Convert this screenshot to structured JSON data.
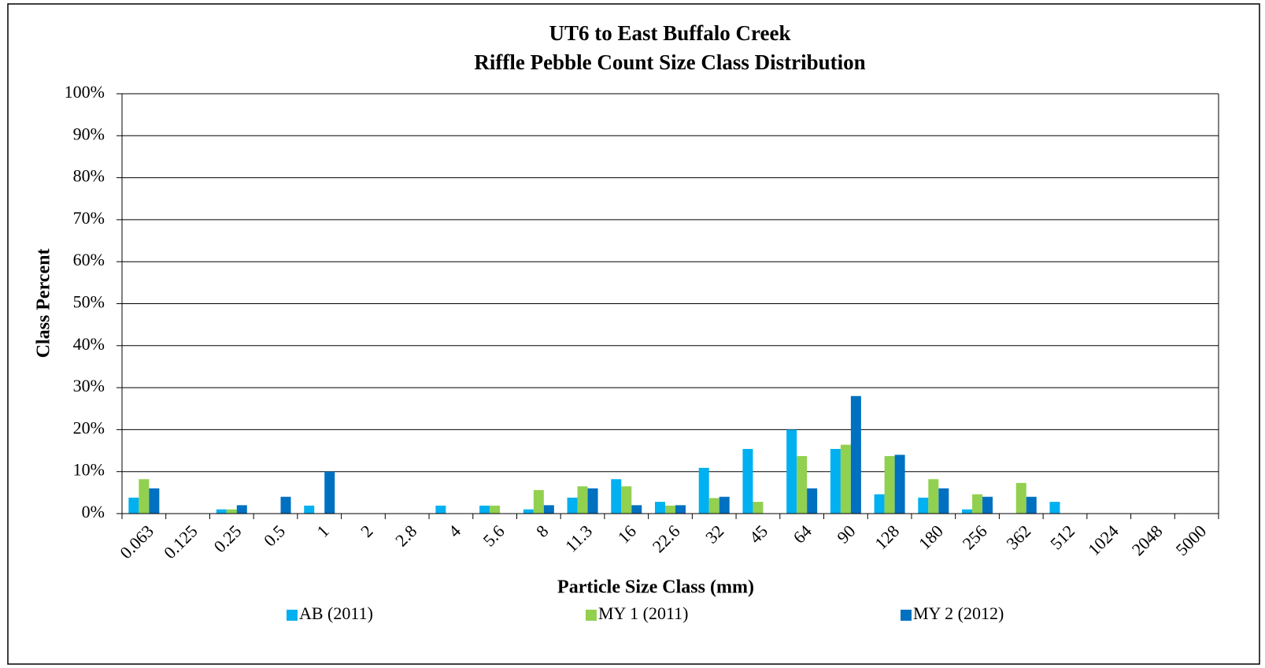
{
  "chart_data": {
    "type": "bar",
    "title": "UT6 to East Buffalo Creek",
    "subtitle": "Riffle Pebble Count Size Class Distribution",
    "x_label": "Particle Size Class (mm)",
    "y_label": "Class Percent",
    "categories": [
      "0.063",
      "0.125",
      "0.25",
      "0.5",
      "1",
      "2",
      "2.8",
      "4",
      "5.6",
      "8",
      "11.3",
      "16",
      "22.6",
      "32",
      "45",
      "64",
      "90",
      "128",
      "180",
      "256",
      "362",
      "512",
      "1024",
      "2048",
      "5000"
    ],
    "series": [
      {
        "name": "AB (2011)",
        "color": "#00b0f0",
        "values": [
          3.8,
          0,
          1,
          0,
          1.9,
          0,
          0,
          1.9,
          1.9,
          1,
          3.8,
          8.2,
          2.8,
          10.9,
          15.4,
          20,
          15.4,
          4.6,
          3.8,
          1,
          0,
          2.8,
          0,
          0,
          0
        ]
      },
      {
        "name": "MY 1 (2011)",
        "color": "#92d050",
        "values": [
          8.2,
          0,
          1,
          0,
          0,
          0,
          0,
          0,
          1.9,
          5.6,
          6.5,
          6.5,
          1.9,
          3.7,
          2.8,
          13.7,
          16.4,
          13.7,
          8.2,
          4.6,
          7.3,
          0,
          0,
          0,
          0
        ]
      },
      {
        "name": "MY 2 (2012)",
        "color": "#0070c0",
        "values": [
          6,
          0,
          2,
          4,
          10,
          0,
          0,
          0,
          0,
          2,
          6,
          2,
          2,
          4,
          0,
          6,
          28,
          14,
          6,
          4,
          4,
          0,
          0,
          0,
          0
        ]
      }
    ],
    "ylim": [
      0,
      100
    ],
    "yticks": [
      {
        "value": 0,
        "label": "0%"
      },
      {
        "value": 10,
        "label": "10%"
      },
      {
        "value": 20,
        "label": "20%"
      },
      {
        "value": 30,
        "label": "30%"
      },
      {
        "value": 40,
        "label": "40%"
      },
      {
        "value": 50,
        "label": "50%"
      },
      {
        "value": 60,
        "label": "60%"
      },
      {
        "value": 70,
        "label": "70%"
      },
      {
        "value": 80,
        "label": "80%"
      },
      {
        "value": 90,
        "label": "90%"
      },
      {
        "value": 100,
        "label": "100%"
      }
    ],
    "grid": true,
    "legend": "bottom"
  }
}
